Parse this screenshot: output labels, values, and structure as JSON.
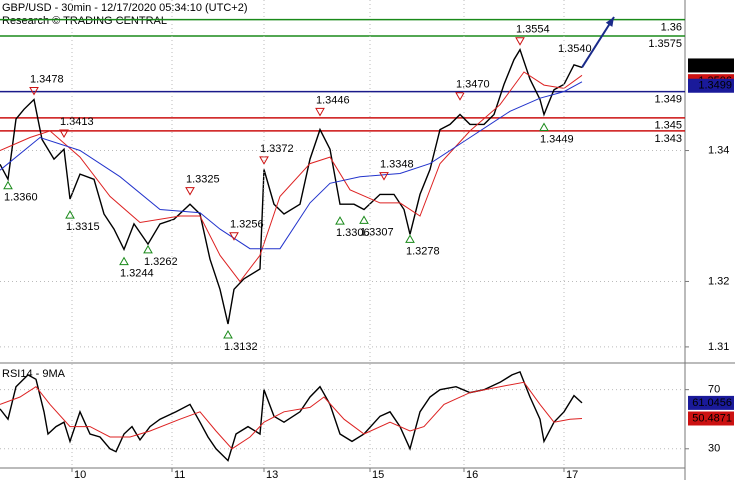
{
  "chart_data": [
    {
      "type": "line",
      "title": "GBP/USD - 30min - 12/17/2020 05:34:10 (UTC+2)",
      "subtitle": "Research © TRADING CENTRAL",
      "xlim": [
        0,
        342.5
      ],
      "ylim": [
        1.308,
        1.363
      ],
      "yticks": [
        1.31,
        1.32,
        1.34
      ],
      "grid": true,
      "series": [
        {
          "color": "#000000",
          "x": [
            0,
            4,
            8,
            12,
            17,
            21,
            27,
            32,
            35,
            40,
            47,
            52,
            57,
            62,
            67,
            74,
            80,
            87,
            95,
            100,
            105,
            110,
            114,
            117,
            122,
            130,
            132,
            137,
            142,
            150,
            155,
            160,
            165,
            170,
            177,
            182,
            190,
            197,
            202,
            205,
            210,
            215,
            220,
            225,
            230,
            235,
            242,
            247,
            252,
            257,
            260,
            265,
            270,
            272,
            277,
            282,
            287,
            291
          ],
          "values": [
            1.3379,
            1.3356,
            1.3448,
            1.3463,
            1.3478,
            1.3417,
            1.3387,
            1.3402,
            1.3326,
            1.3364,
            1.3356,
            1.3303,
            1.328,
            1.3249,
            1.3288,
            1.3257,
            1.3288,
            1.3295,
            1.3318,
            1.3303,
            1.3234,
            1.3188,
            1.3135,
            1.3188,
            1.3204,
            1.3219,
            1.3371,
            1.3318,
            1.3303,
            1.3318,
            1.3387,
            1.3432,
            1.3402,
            1.3318,
            1.3318,
            1.331,
            1.3333,
            1.3333,
            1.331,
            1.3272,
            1.3333,
            1.3371,
            1.3432,
            1.344,
            1.3455,
            1.344,
            1.344,
            1.3455,
            1.3501,
            1.3539,
            1.3554,
            1.3509,
            1.3478,
            1.3455,
            1.3493,
            1.3501,
            1.3531,
            1.3527
          ]
        },
        {
          "color": "#dd2222",
          "x": [
            0,
            15,
            25,
            40,
            55,
            70,
            90,
            100,
            110,
            120,
            130,
            140,
            155,
            165,
            175,
            190,
            200,
            210,
            220,
            235,
            250,
            262,
            272,
            282,
            291
          ],
          "values": [
            1.34,
            1.342,
            1.343,
            1.339,
            1.333,
            1.329,
            1.33,
            1.33,
            1.324,
            1.32,
            1.324,
            1.333,
            1.338,
            1.339,
            1.334,
            1.332,
            1.332,
            1.33,
            1.338,
            1.343,
            1.347,
            1.352,
            1.35,
            1.3495,
            1.3515
          ]
        },
        {
          "color": "#2233cc",
          "x": [
            0,
            20,
            40,
            60,
            80,
            100,
            110,
            125,
            140,
            155,
            165,
            180,
            200,
            215,
            235,
            255,
            270,
            282,
            291
          ],
          "values": [
            1.337,
            1.342,
            1.34,
            1.336,
            1.331,
            1.3305,
            1.328,
            1.325,
            1.325,
            1.332,
            1.335,
            1.336,
            1.3365,
            1.338,
            1.342,
            1.346,
            1.348,
            1.349,
            1.3505
          ]
        }
      ],
      "forecast": {
        "color": "#1a2a8a",
        "x": [
          291,
          307
        ],
        "values": [
          1.3527,
          1.3604
        ]
      },
      "levels": [
        {
          "value": 1.36,
          "color": "#1a8a1a"
        },
        {
          "value": 1.3575,
          "color": "#1a8a1a"
        },
        {
          "value": 1.349,
          "color": "#1a1a8a"
        },
        {
          "value": 1.345,
          "color": "#cc1111"
        },
        {
          "value": 1.343,
          "color": "#cc1111"
        }
      ],
      "axis_markers": [
        {
          "value": 1.353,
          "color": "#000000"
        },
        {
          "value": 1.3506,
          "color": "#cc1111"
        },
        {
          "value": 1.3499,
          "color": "#1a1a9a"
        }
      ],
      "annotations": [
        {
          "x": 4,
          "value": 1.336,
          "label": "1.3360",
          "kind": "low"
        },
        {
          "x": 17,
          "value": 1.3478,
          "kind": "high"
        },
        {
          "x": 32,
          "value": 1.3413,
          "kind": "high"
        },
        {
          "x": 35,
          "value": 1.3315,
          "kind": "low"
        },
        {
          "x": 62,
          "value": 1.3244,
          "kind": "low"
        },
        {
          "x": 74,
          "value": 1.3262,
          "kind": "low"
        },
        {
          "x": 95,
          "value": 1.3325,
          "kind": "high"
        },
        {
          "x": 114,
          "value": 1.3132,
          "kind": "low"
        },
        {
          "x": 117,
          "value": 1.3256,
          "kind": "high"
        },
        {
          "x": 132,
          "value": 1.3372,
          "kind": "high"
        },
        {
          "x": 160,
          "value": 1.3446,
          "kind": "high"
        },
        {
          "x": 170,
          "value": 1.3306,
          "kind": "low"
        },
        {
          "x": 182,
          "value": 1.3307,
          "kind": "low"
        },
        {
          "x": 192,
          "value": 1.3348,
          "kind": "high"
        },
        {
          "x": 205,
          "value": 1.3278,
          "kind": "low"
        },
        {
          "x": 230,
          "value": 1.347,
          "label": "1.3470",
          "kind": "high"
        },
        {
          "x": 260,
          "value": 1.3554,
          "kind": "high"
        },
        {
          "x": 272,
          "value": 1.3449,
          "kind": "low"
        },
        {
          "x": 287,
          "value": 1.354,
          "label": "1.3540",
          "kind": "note"
        }
      ]
    },
    {
      "type": "line",
      "title": "RSI14 - 9MA",
      "xlim": [
        0,
        342.5
      ],
      "ylim": [
        17,
        86
      ],
      "yticks": [
        30,
        70
      ],
      "xticks": [
        {
          "value": 36,
          "label": "10"
        },
        {
          "value": 86,
          "label": "11"
        },
        {
          "value": 132,
          "label": "13"
        },
        {
          "value": 185,
          "label": "15"
        },
        {
          "value": 232,
          "label": "16"
        },
        {
          "value": 282,
          "label": "17"
        }
      ],
      "grid": true,
      "series": [
        {
          "color": "#000000",
          "x": [
            0,
            4,
            8,
            14,
            18,
            22,
            24,
            28,
            32,
            35,
            40,
            45,
            50,
            55,
            58,
            62,
            66,
            70,
            75,
            80,
            88,
            95,
            100,
            104,
            108,
            114,
            118,
            124,
            130,
            132,
            137,
            142,
            150,
            155,
            160,
            165,
            170,
            176,
            182,
            190,
            195,
            200,
            205,
            210,
            215,
            220,
            228,
            235,
            242,
            250,
            256,
            260,
            265,
            270,
            272,
            277,
            282,
            287,
            291
          ],
          "values": [
            57,
            50,
            72,
            80,
            77,
            55,
            40,
            45,
            48,
            35,
            55,
            40,
            38,
            30,
            28,
            40,
            45,
            36,
            45,
            50,
            55,
            60,
            48,
            38,
            30,
            22,
            40,
            45,
            40,
            70,
            52,
            48,
            55,
            65,
            72,
            60,
            40,
            35,
            40,
            52,
            55,
            45,
            30,
            55,
            65,
            70,
            72,
            68,
            70,
            75,
            80,
            82,
            65,
            50,
            35,
            48,
            55,
            66,
            61.0456
          ]
        },
        {
          "color": "#dd2222",
          "x": [
            0,
            10,
            18,
            25,
            35,
            45,
            55,
            65,
            75,
            90,
            100,
            108,
            116,
            125,
            132,
            142,
            155,
            162,
            172,
            182,
            195,
            205,
            212,
            222,
            235,
            250,
            262,
            270,
            277,
            285,
            291
          ],
          "values": [
            60,
            65,
            72,
            60,
            45,
            45,
            38,
            38,
            42,
            50,
            55,
            42,
            30,
            38,
            48,
            55,
            58,
            65,
            50,
            40,
            48,
            42,
            45,
            60,
            68,
            72,
            75,
            60,
            48,
            50,
            50.4871
          ]
        }
      ],
      "axis_markers": [
        {
          "value": 61.0456,
          "color": "#1a1a9a"
        },
        {
          "value": 50.4871,
          "color": "#cc1111"
        }
      ]
    }
  ]
}
